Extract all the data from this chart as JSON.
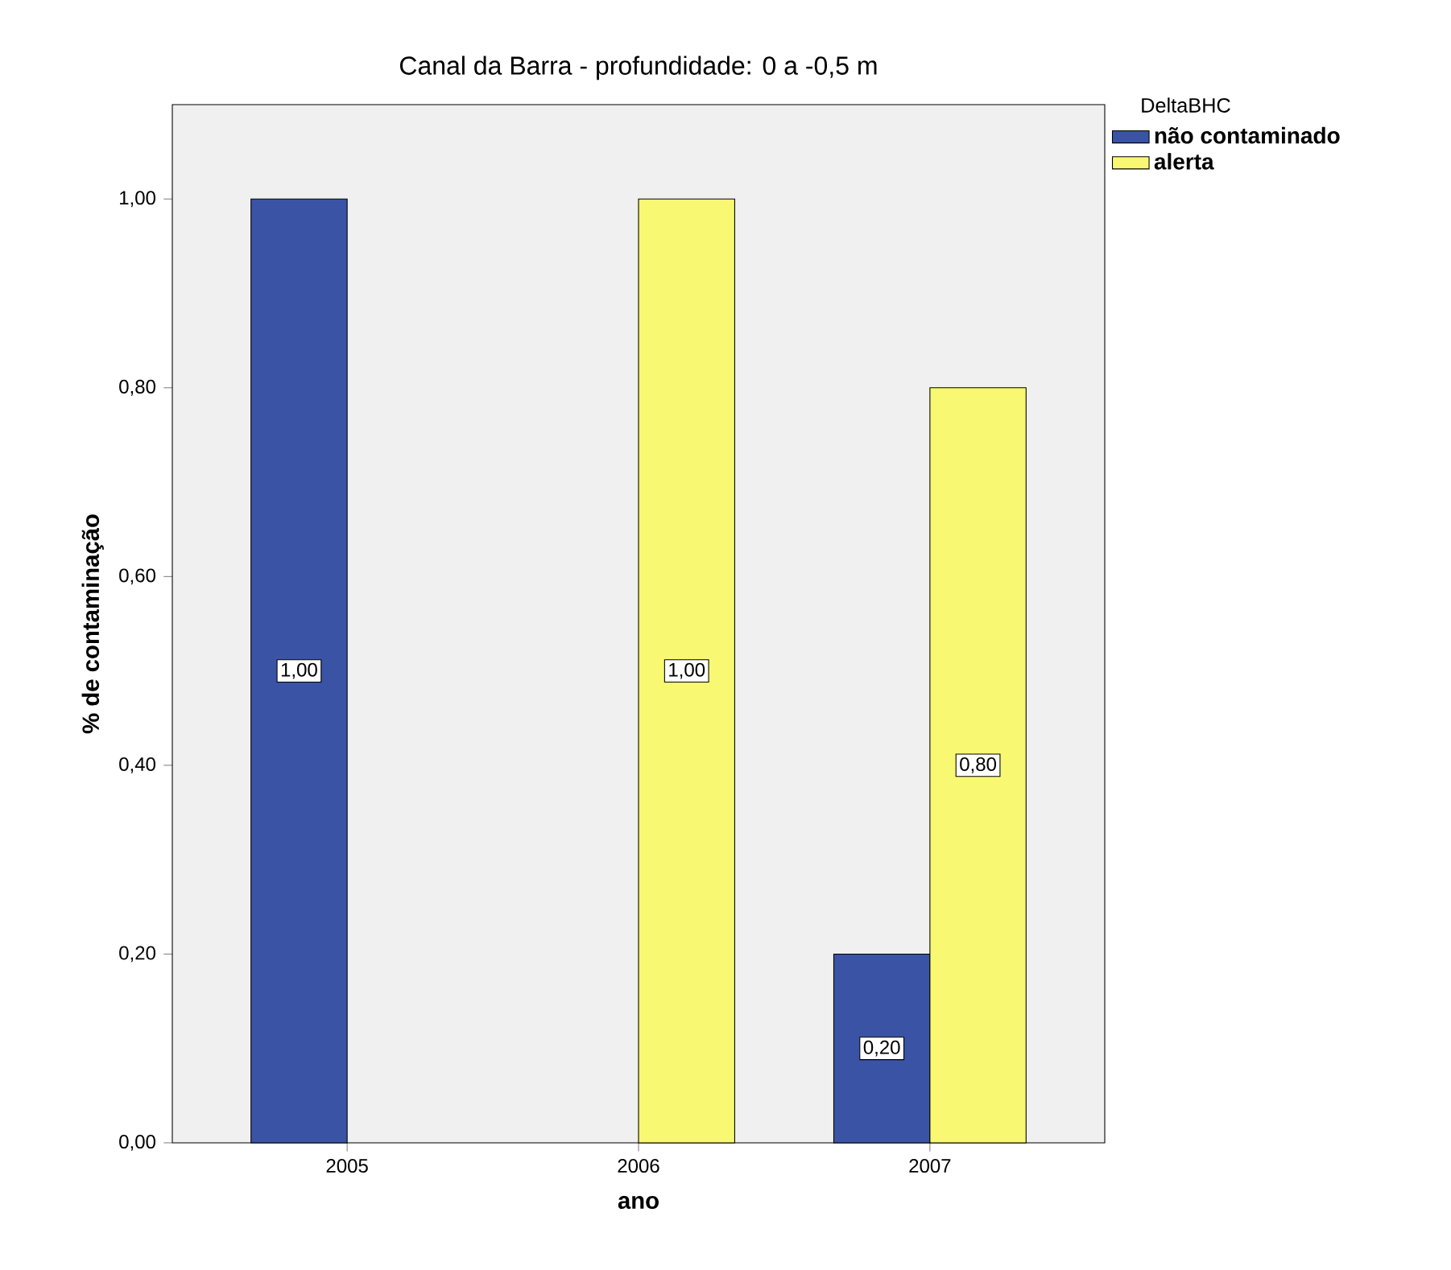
{
  "chart_data": {
    "type": "bar",
    "title": "Canal da Barra - profundidade: 0 a -0,5 m",
    "xlabel": "ano",
    "ylabel": "% de contaminação",
    "legend_title": "DeltaBHC",
    "categories": [
      "2005",
      "2006",
      "2007"
    ],
    "series": [
      {
        "name": "não contaminado",
        "color": "#3a53a4",
        "values": [
          1.0,
          null,
          0.2
        ],
        "value_labels": [
          "1,00",
          null,
          "0,20"
        ]
      },
      {
        "name": "alerta",
        "color": "#f8f872",
        "values": [
          null,
          1.0,
          0.8
        ],
        "value_labels": [
          null,
          "1,00",
          "0,80"
        ]
      }
    ],
    "ylim": [
      0,
      1.1
    ],
    "yticks": [
      {
        "value": 0,
        "label": "0,00"
      },
      {
        "value": 0.2,
        "label": "0,20"
      },
      {
        "value": 0.4,
        "label": "0,40"
      },
      {
        "value": 0.6,
        "label": "0,60"
      },
      {
        "value": 0.8,
        "label": "0,80"
      },
      {
        "value": 1.0,
        "label": "1,00"
      }
    ],
    "grid": false,
    "legend": "top right"
  }
}
